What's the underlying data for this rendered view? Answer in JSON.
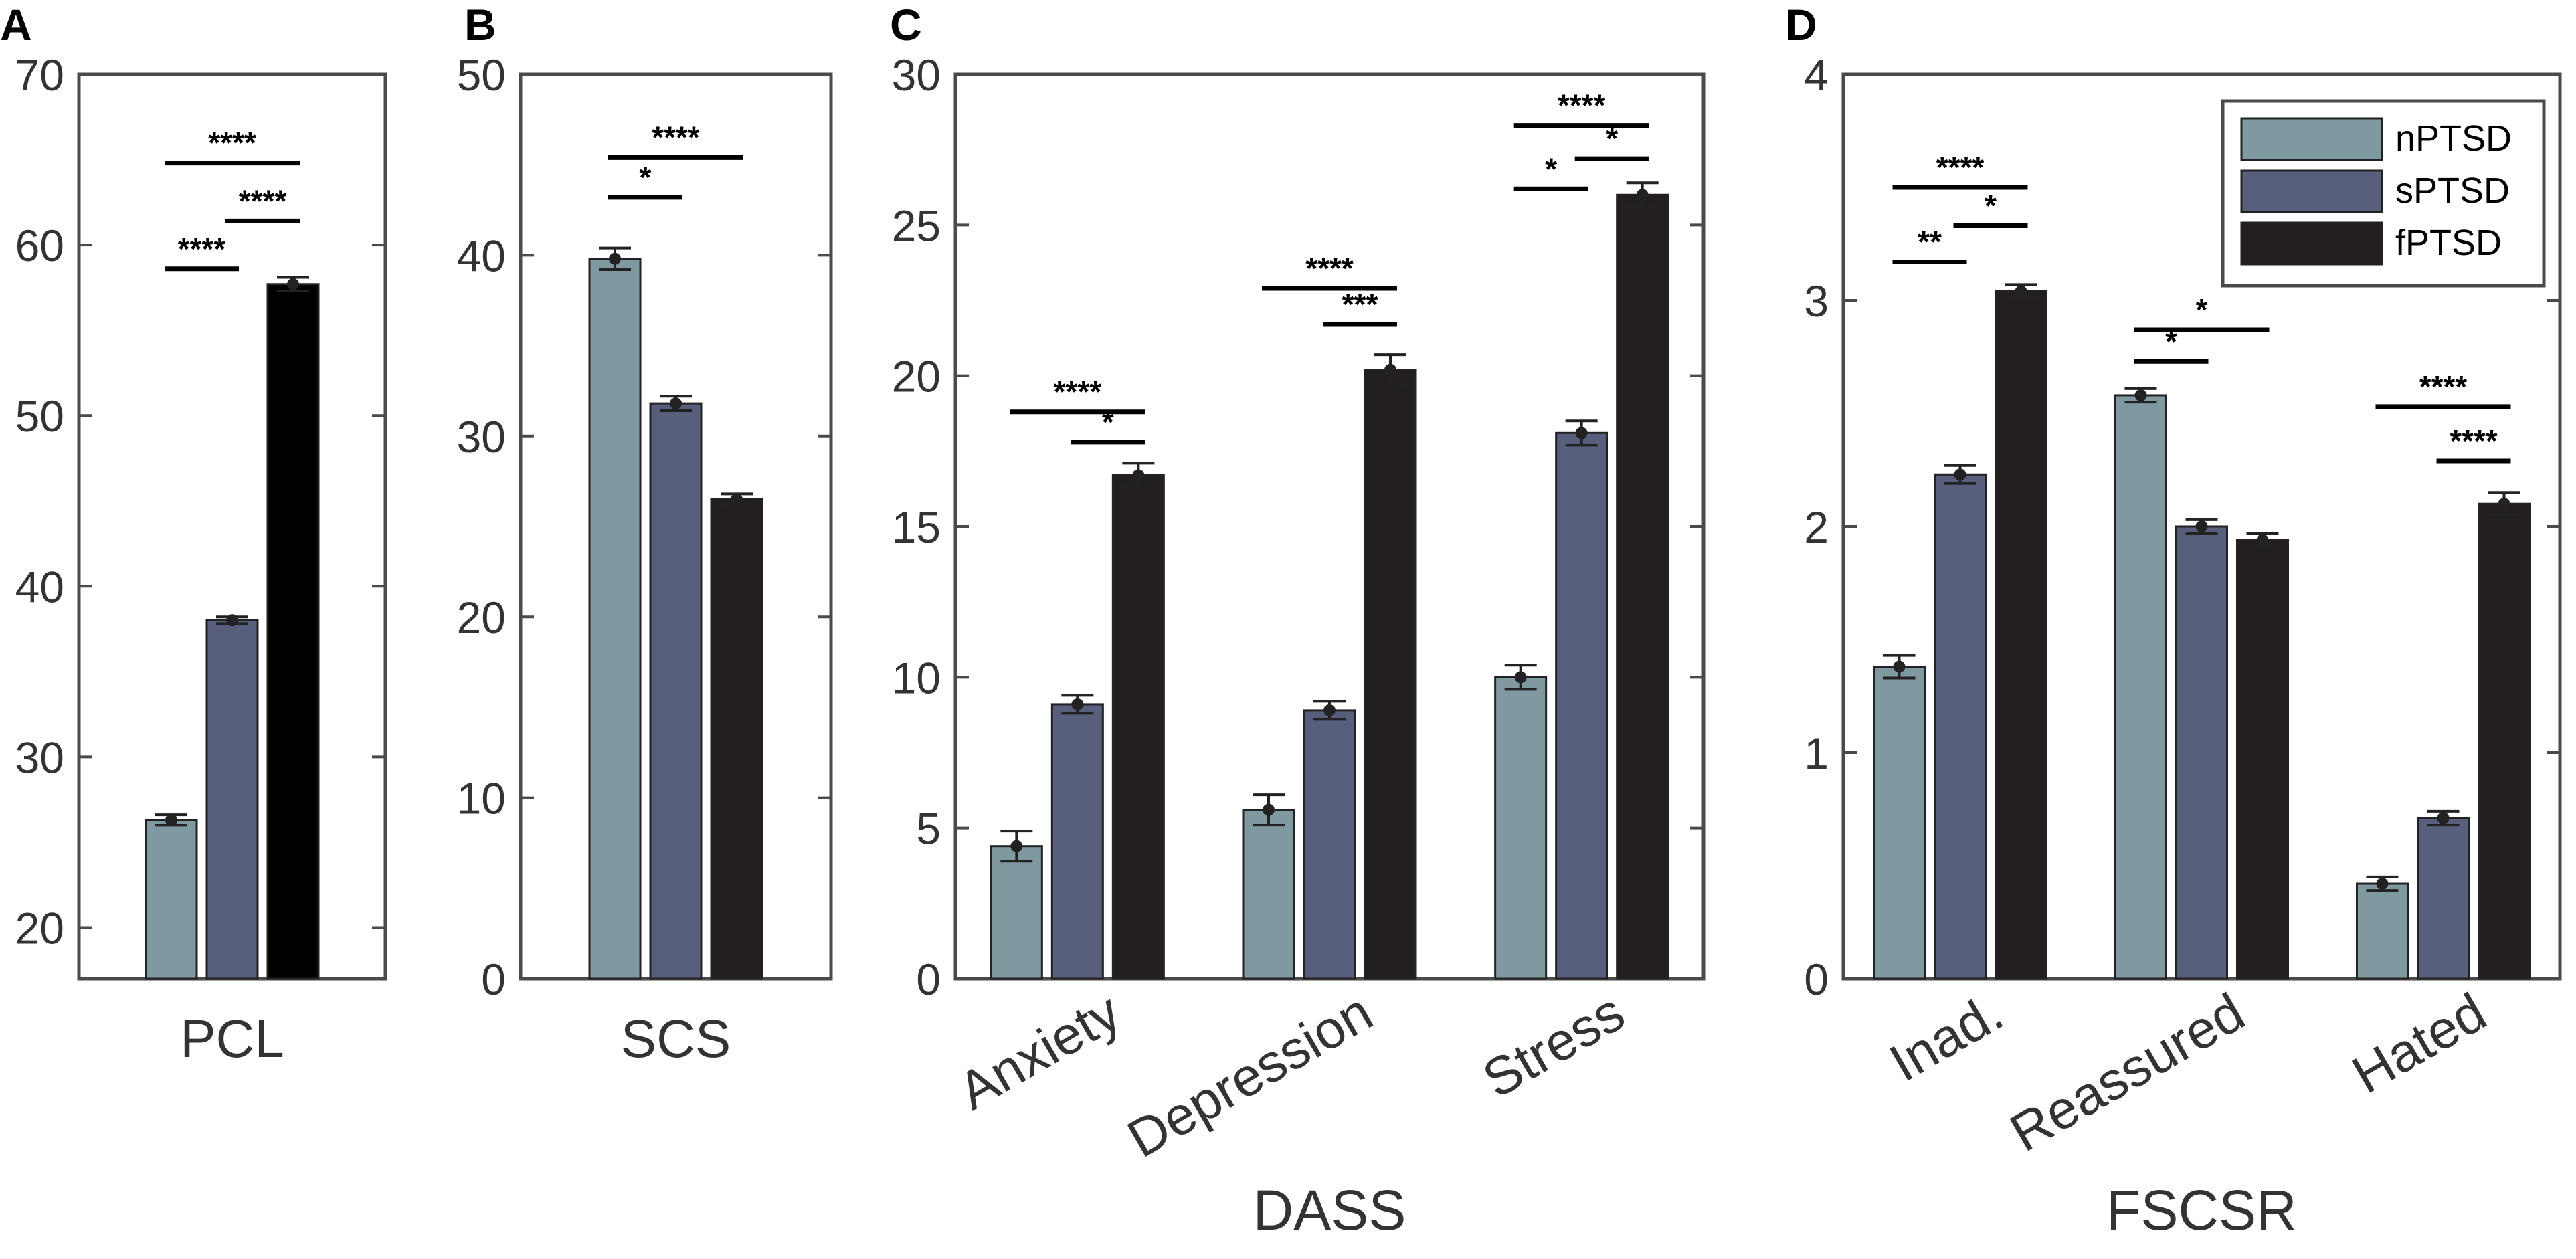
{
  "chart_data": [
    {
      "type": "bar",
      "panel": "A",
      "title": "",
      "xlabel": "",
      "ylabel": "",
      "ylim": [
        17,
        70
      ],
      "yticks": [
        20,
        30,
        40,
        50,
        60,
        70
      ],
      "categories": [
        "PCL"
      ],
      "series": [
        {
          "name": "nPTSD",
          "values": [
            26.3
          ],
          "errors": [
            0.3
          ]
        },
        {
          "name": "sPTSD",
          "values": [
            38.0
          ],
          "errors": [
            0.2
          ]
        },
        {
          "name": "fPTSD",
          "values": [
            57.7
          ],
          "errors": [
            0.4
          ]
        }
      ],
      "significance": [
        {
          "category": 0,
          "from": 0,
          "to": 1,
          "label": "****",
          "y": 58.6
        },
        {
          "category": 0,
          "from": 1,
          "to": 2,
          "label": "****",
          "y": 61.4
        },
        {
          "category": 0,
          "from": 0,
          "to": 2,
          "label": "****",
          "y": 64.8
        }
      ]
    },
    {
      "type": "bar",
      "panel": "B",
      "title": "",
      "xlabel": "",
      "ylabel": "",
      "ylim": [
        0,
        50
      ],
      "yticks": [
        0,
        10,
        20,
        30,
        40,
        50
      ],
      "categories": [
        "SCS"
      ],
      "series": [
        {
          "name": "nPTSD",
          "values": [
            39.8
          ],
          "errors": [
            0.6
          ]
        },
        {
          "name": "sPTSD",
          "values": [
            31.8
          ],
          "errors": [
            0.4
          ]
        },
        {
          "name": "fPTSD",
          "values": [
            26.5
          ],
          "errors": [
            0.3
          ]
        }
      ],
      "significance": [
        {
          "category": 0,
          "from": 0,
          "to": 1,
          "label": "*",
          "y": 43.2
        },
        {
          "category": 0,
          "from": 0,
          "to": 2,
          "label": "****",
          "y": 45.4
        }
      ]
    },
    {
      "type": "bar",
      "panel": "C",
      "title": "",
      "xlabel": "DASS",
      "ylabel": "",
      "ylim": [
        0,
        30
      ],
      "yticks": [
        0,
        5,
        10,
        15,
        20,
        25,
        30
      ],
      "categories": [
        "Anxiety",
        "Depression",
        "Stress"
      ],
      "series": [
        {
          "name": "nPTSD",
          "values": [
            4.4,
            5.6,
            10.0
          ],
          "errors": [
            0.5,
            0.5,
            0.4
          ]
        },
        {
          "name": "sPTSD",
          "values": [
            9.1,
            8.9,
            18.1
          ],
          "errors": [
            0.3,
            0.3,
            0.4
          ]
        },
        {
          "name": "fPTSD",
          "values": [
            16.7,
            20.2,
            26.0
          ],
          "errors": [
            0.4,
            0.5,
            0.4
          ]
        }
      ],
      "significance": [
        {
          "category": 0,
          "from": 1,
          "to": 2,
          "label": "*",
          "y": 17.8
        },
        {
          "category": 0,
          "from": 0,
          "to": 2,
          "label": "****",
          "y": 18.8
        },
        {
          "category": 1,
          "from": 1,
          "to": 2,
          "label": "***",
          "y": 21.7
        },
        {
          "category": 1,
          "from": 0,
          "to": 2,
          "label": "****",
          "y": 22.9
        },
        {
          "category": 2,
          "from": 0,
          "to": 1,
          "label": "*",
          "y": 26.2
        },
        {
          "category": 2,
          "from": 1,
          "to": 2,
          "label": "*",
          "y": 27.2
        },
        {
          "category": 2,
          "from": 0,
          "to": 2,
          "label": "****",
          "y": 28.3
        }
      ]
    },
    {
      "type": "bar",
      "panel": "D",
      "title": "",
      "xlabel": "FSCSR",
      "ylabel": "",
      "ylim": [
        0,
        4
      ],
      "yticks": [
        0,
        1,
        2,
        3,
        4
      ],
      "categories": [
        "Inad.",
        "Reassured",
        "Hated"
      ],
      "series": [
        {
          "name": "nPTSD",
          "values": [
            1.38,
            2.58,
            0.42
          ],
          "errors": [
            0.05,
            0.03,
            0.03
          ]
        },
        {
          "name": "sPTSD",
          "values": [
            2.23,
            2.0,
            0.71
          ],
          "errors": [
            0.04,
            0.03,
            0.03
          ]
        },
        {
          "name": "fPTSD",
          "values": [
            3.04,
            1.94,
            2.1
          ],
          "errors": [
            0.03,
            0.03,
            0.05
          ]
        }
      ],
      "significance": [
        {
          "category": 0,
          "from": 0,
          "to": 1,
          "label": "**",
          "y": 3.17
        },
        {
          "category": 0,
          "from": 1,
          "to": 2,
          "label": "*",
          "y": 3.33
        },
        {
          "category": 0,
          "from": 0,
          "to": 2,
          "label": "****",
          "y": 3.5
        },
        {
          "category": 1,
          "from": 0,
          "to": 1,
          "label": "*",
          "y": 2.73
        },
        {
          "category": 1,
          "from": 0,
          "to": 2,
          "label": "*",
          "y": 2.87
        },
        {
          "category": 2,
          "from": 1,
          "to": 2,
          "label": "****",
          "y": 2.29
        },
        {
          "category": 2,
          "from": 0,
          "to": 2,
          "label": "****",
          "y": 2.53
        }
      ],
      "legend": {
        "position": "top-right",
        "entries": [
          "nPTSD",
          "sPTSD",
          "fPTSD"
        ]
      }
    }
  ],
  "colors": {
    "nPTSD": "#7f99a0",
    "sPTSD": "#575f7d",
    "fPTSD": "#231f20",
    "fPTSD_panelA": "#000000",
    "axis": "#4a4a4a"
  }
}
